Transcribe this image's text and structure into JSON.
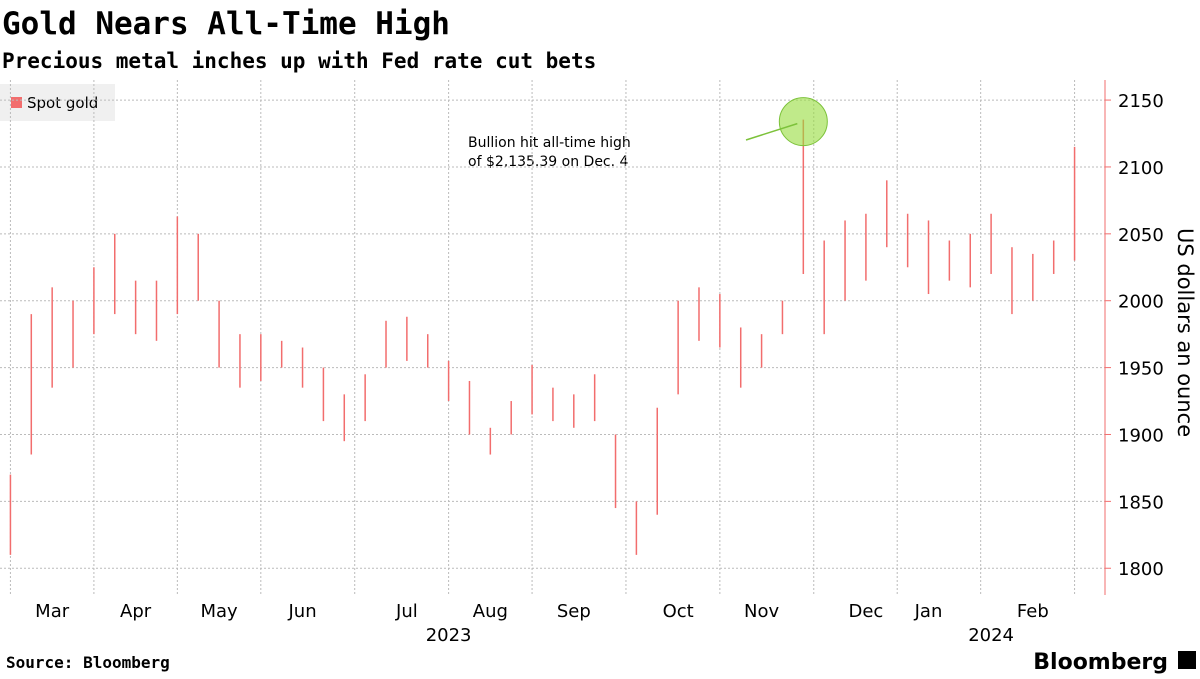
{
  "chart_data": {
    "type": "range",
    "title": "Gold Nears All-Time High",
    "subtitle": "Precious metal inches up with Fed rate cut bets",
    "y_label": "US dollars an ounce",
    "source": "Source: Bloomberg",
    "brand": "Bloomberg",
    "annotation": [
      "Bullion hit all-time high",
      "of $2,135.39 on Dec. 4"
    ],
    "categories": [
      null,
      null,
      "Mar",
      null,
      null,
      null,
      "Apr",
      null,
      null,
      null,
      "May",
      null,
      null,
      null,
      "Jun",
      null,
      null,
      null,
      null,
      "Jul",
      null,
      null,
      null,
      "Aug",
      null,
      null,
      null,
      "Sep",
      null,
      null,
      null,
      null,
      "Oct",
      null,
      null,
      null,
      "Nov",
      null,
      null,
      null,
      null,
      "Dec",
      null,
      null,
      "Jan",
      null,
      null,
      null,
      null,
      "Feb",
      null,
      null
    ],
    "years": [
      null,
      null,
      null,
      null,
      null,
      null,
      null,
      null,
      null,
      null,
      null,
      null,
      null,
      null,
      null,
      null,
      null,
      null,
      null,
      null,
      null,
      "2023",
      null,
      null,
      null,
      null,
      null,
      null,
      null,
      null,
      null,
      null,
      null,
      null,
      null,
      null,
      null,
      null,
      null,
      null,
      null,
      null,
      null,
      null,
      null,
      null,
      null,
      "2024",
      null,
      null,
      null,
      null
    ],
    "series": [
      {
        "name": "Spot gold",
        "color": "#f26d6d",
        "low": [
          1810,
          1885,
          1935,
          1950,
          1975,
          1990,
          1975,
          1970,
          1990,
          2000,
          1950,
          1935,
          1940,
          1950,
          1935,
          1910,
          1895,
          1910,
          1950,
          1955,
          1950,
          1925,
          1900,
          1885,
          1900,
          1915,
          1910,
          1905,
          1910,
          1845,
          1810,
          1840,
          1930,
          1970,
          1965,
          1935,
          1950,
          1975,
          2020,
          1975,
          2000,
          2015,
          2040,
          2025,
          2005,
          2015,
          2010,
          2020,
          1990,
          2000,
          2020,
          2030
        ],
        "high": [
          1870,
          1990,
          2010,
          2000,
          2025,
          2050,
          2015,
          2015,
          2063,
          2050,
          2000,
          1975,
          1975,
          1970,
          1965,
          1950,
          1930,
          1945,
          1985,
          1988,
          1975,
          1955,
          1940,
          1905,
          1925,
          1952,
          1935,
          1930,
          1945,
          1900,
          1850,
          1920,
          2000,
          2010,
          2005,
          1980,
          1975,
          2000,
          2135.39,
          2045,
          2060,
          2065,
          2090,
          2065,
          2060,
          2045,
          2050,
          2065,
          2040,
          2035,
          2045,
          2115
        ]
      }
    ],
    "ylim": [
      1780,
      2165
    ],
    "yticks": [
      1800,
      1850,
      1900,
      1950,
      2000,
      2050,
      2100,
      2150
    ],
    "grid": true,
    "legend": "top-left"
  }
}
